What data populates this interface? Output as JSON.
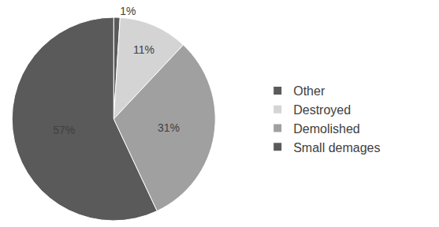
{
  "chart_data": {
    "type": "pie",
    "categories": [
      "Other",
      "Destroyed",
      "Demolished",
      "Small demages"
    ],
    "values": [
      1,
      11,
      31,
      57
    ],
    "value_labels": [
      "1%",
      "11%",
      "31%",
      "57%"
    ],
    "colors": [
      "#5a5a5a",
      "#d4d4d4",
      "#a0a0a0",
      "#5a5a5a"
    ],
    "data_labels": true,
    "legend": "right"
  }
}
